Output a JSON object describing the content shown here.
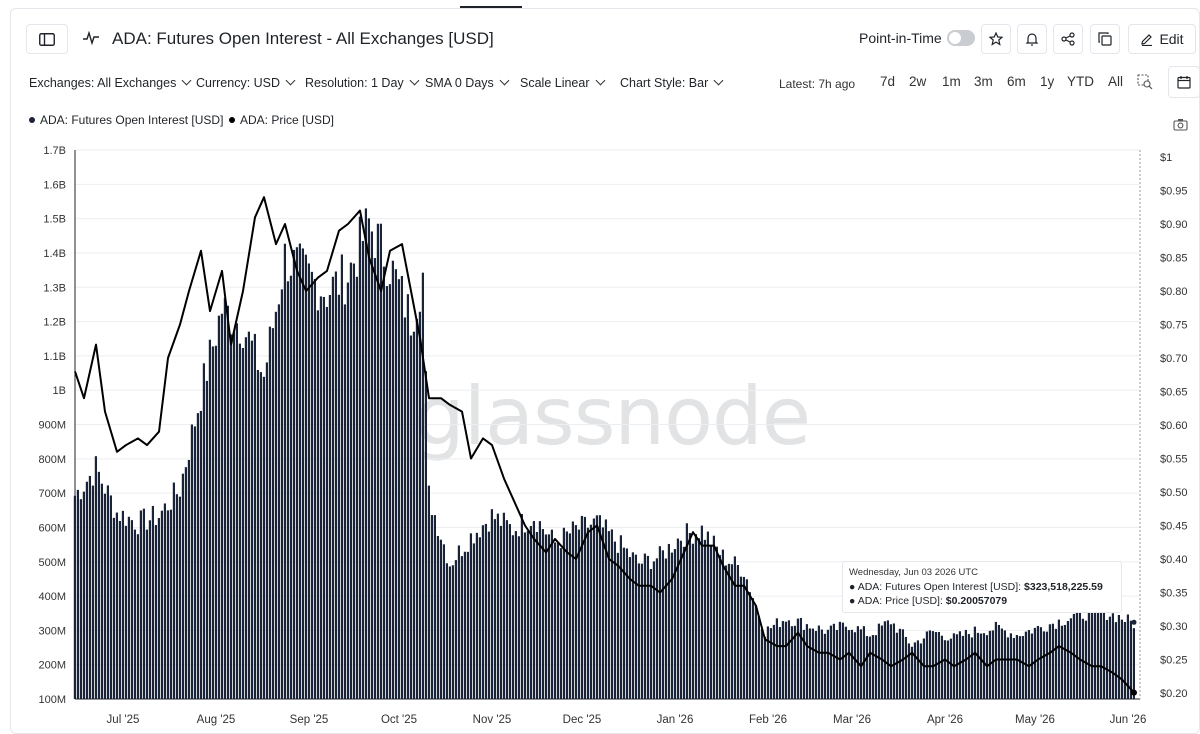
{
  "header": {
    "title": "ADA: Futures Open Interest - All Exchanges [USD]",
    "point_in_time": "Point-in-Time",
    "edit": "Edit"
  },
  "toolbar": {
    "exchanges": "Exchanges: All Exchanges",
    "currency": "Currency: USD",
    "resolution": "Resolution: 1 Day",
    "sma": "SMA 0 Days",
    "scale": "Scale Linear",
    "style": "Chart Style: Bar",
    "latest": "Latest: 7h ago",
    "ranges": [
      "7d",
      "2w",
      "1m",
      "3m",
      "6m",
      "1y",
      "YTD",
      "All"
    ]
  },
  "legend": {
    "oi": "ADA: Futures Open Interest [USD]",
    "price": "ADA: Price [USD]"
  },
  "watermark": "glassnode",
  "tooltip": {
    "date": "Wednesday, Jun 03 2026 UTC",
    "oi_label": "ADA: Futures Open Interest [USD]:",
    "oi_value": "$323,518,225.59",
    "price_label": "ADA: Price [USD]:",
    "price_value": "$0.20057079"
  },
  "colors": {
    "bar": "#1a2438",
    "line": "#000000",
    "accent_bar_fill": "#1a2438"
  },
  "chart_data": {
    "type": "bar",
    "xlabel": "",
    "ylabel": "",
    "left_axis": {
      "ticks": [
        "100M",
        "200M",
        "300M",
        "400M",
        "500M",
        "600M",
        "700M",
        "800M",
        "900M",
        "1B",
        "1.1B",
        "1.2B",
        "1.3B",
        "1.4B",
        "1.5B",
        "1.6B",
        "1.7B"
      ],
      "ylim": [
        100000000,
        1700000000
      ]
    },
    "right_axis": {
      "ticks": [
        "$0.20",
        "$0.25",
        "$0.30",
        "$0.35",
        "$0.40",
        "$0.45",
        "$0.50",
        "$0.55",
        "$0.60",
        "$0.65",
        "$0.70",
        "$0.75",
        "$0.80",
        "$0.85",
        "$0.90",
        "$0.95",
        "$1"
      ],
      "ylim": [
        0.2,
        1.0
      ]
    },
    "x_ticks": [
      "Jul '25",
      "Aug '25",
      "Sep '25",
      "Oct '25",
      "Nov '25",
      "Dec '25",
      "Jan '26",
      "Feb '26",
      "Mar '26",
      "Apr '26",
      "May '26",
      "Jun '26"
    ],
    "grid": true,
    "series": [
      {
        "name": "ADA: Futures Open Interest [USD]",
        "axis": "left",
        "kind": "bar",
        "x": [
          "2025-06-15",
          "2025-06-22",
          "2025-06-29",
          "2025-07-06",
          "2025-07-13",
          "2025-07-20",
          "2025-07-27",
          "2025-08-03",
          "2025-08-10",
          "2025-08-17",
          "2025-08-24",
          "2025-08-31",
          "2025-09-07",
          "2025-09-14",
          "2025-09-21",
          "2025-09-28",
          "2025-10-05",
          "2025-10-09",
          "2025-10-11",
          "2025-10-18",
          "2025-10-25",
          "2025-11-01",
          "2025-11-08",
          "2025-11-15",
          "2025-11-22",
          "2025-11-29",
          "2025-12-06",
          "2025-12-13",
          "2025-12-20",
          "2025-12-27",
          "2026-01-03",
          "2026-01-10",
          "2026-01-17",
          "2026-01-24",
          "2026-01-31",
          "2026-02-07",
          "2026-02-14",
          "2026-02-21",
          "2026-02-28",
          "2026-03-07",
          "2026-03-14",
          "2026-03-21",
          "2026-03-28",
          "2026-04-04",
          "2026-04-11",
          "2026-04-18",
          "2026-04-25",
          "2026-05-02",
          "2026-05-09",
          "2026-05-16",
          "2026-05-23",
          "2026-05-30",
          "2026-06-03"
        ],
        "values": [
          700000000,
          780000000,
          650000000,
          620000000,
          640000000,
          720000000,
          1000000000,
          1250000000,
          1200000000,
          1050000000,
          1400000000,
          1350000000,
          1300000000,
          1350000000,
          1500000000,
          1380000000,
          1220000000,
          1350000000,
          700000000,
          500000000,
          580000000,
          640000000,
          600000000,
          640000000,
          560000000,
          600000000,
          620000000,
          560000000,
          500000000,
          520000000,
          580000000,
          600000000,
          520000000,
          480000000,
          300000000,
          340000000,
          320000000,
          300000000,
          320000000,
          290000000,
          330000000,
          260000000,
          300000000,
          280000000,
          300000000,
          310000000,
          290000000,
          310000000,
          330000000,
          350000000,
          360000000,
          340000000,
          323518225.59
        ]
      },
      {
        "name": "ADA: Price [USD]",
        "axis": "right",
        "kind": "line",
        "x": [
          "2025-06-15",
          "2025-06-18",
          "2025-06-22",
          "2025-06-25",
          "2025-06-29",
          "2025-07-02",
          "2025-07-06",
          "2025-07-09",
          "2025-07-13",
          "2025-07-16",
          "2025-07-20",
          "2025-07-23",
          "2025-07-27",
          "2025-07-30",
          "2025-08-03",
          "2025-08-06",
          "2025-08-10",
          "2025-08-14",
          "2025-08-17",
          "2025-08-21",
          "2025-08-24",
          "2025-08-28",
          "2025-08-31",
          "2025-09-04",
          "2025-09-07",
          "2025-09-11",
          "2025-09-14",
          "2025-09-18",
          "2025-09-21",
          "2025-09-25",
          "2025-09-28",
          "2025-10-02",
          "2025-10-05",
          "2025-10-08",
          "2025-10-11",
          "2025-10-15",
          "2025-10-18",
          "2025-10-22",
          "2025-10-25",
          "2025-10-29",
          "2025-11-01",
          "2025-11-05",
          "2025-11-08",
          "2025-11-12",
          "2025-11-15",
          "2025-11-19",
          "2025-11-22",
          "2025-11-26",
          "2025-11-29",
          "2025-12-03",
          "2025-12-06",
          "2025-12-10",
          "2025-12-13",
          "2025-12-17",
          "2025-12-20",
          "2025-12-24",
          "2025-12-27",
          "2025-12-31",
          "2026-01-03",
          "2026-01-07",
          "2026-01-10",
          "2026-01-14",
          "2026-01-17",
          "2026-01-21",
          "2026-01-24",
          "2026-01-28",
          "2026-01-31",
          "2026-02-04",
          "2026-02-07",
          "2026-02-11",
          "2026-02-14",
          "2026-02-18",
          "2026-02-21",
          "2026-02-25",
          "2026-02-28",
          "2026-03-04",
          "2026-03-07",
          "2026-03-11",
          "2026-03-14",
          "2026-03-18",
          "2026-03-21",
          "2026-03-25",
          "2026-03-28",
          "2026-04-01",
          "2026-04-04",
          "2026-04-08",
          "2026-04-11",
          "2026-04-15",
          "2026-04-18",
          "2026-04-22",
          "2026-04-25",
          "2026-04-29",
          "2026-05-02",
          "2026-05-06",
          "2026-05-09",
          "2026-05-13",
          "2026-05-16",
          "2026-05-20",
          "2026-05-23",
          "2026-05-27",
          "2026-05-30",
          "2026-06-03"
        ],
        "values": [
          0.68,
          0.64,
          0.72,
          0.62,
          0.56,
          0.57,
          0.58,
          0.57,
          0.59,
          0.7,
          0.75,
          0.8,
          0.86,
          0.77,
          0.83,
          0.72,
          0.8,
          0.91,
          0.94,
          0.87,
          0.9,
          0.83,
          0.8,
          0.82,
          0.83,
          0.89,
          0.9,
          0.92,
          0.85,
          0.8,
          0.86,
          0.87,
          0.8,
          0.73,
          0.64,
          0.64,
          0.63,
          0.62,
          0.55,
          0.58,
          0.57,
          0.52,
          0.49,
          0.45,
          0.43,
          0.41,
          0.43,
          0.41,
          0.4,
          0.44,
          0.45,
          0.4,
          0.39,
          0.37,
          0.36,
          0.36,
          0.35,
          0.37,
          0.4,
          0.44,
          0.42,
          0.42,
          0.39,
          0.36,
          0.36,
          0.33,
          0.28,
          0.27,
          0.27,
          0.29,
          0.27,
          0.26,
          0.26,
          0.25,
          0.26,
          0.24,
          0.26,
          0.25,
          0.24,
          0.25,
          0.26,
          0.24,
          0.24,
          0.25,
          0.24,
          0.25,
          0.26,
          0.24,
          0.25,
          0.25,
          0.25,
          0.24,
          0.25,
          0.26,
          0.27,
          0.26,
          0.25,
          0.24,
          0.24,
          0.23,
          0.22,
          0.20057079
        ]
      }
    ]
  }
}
